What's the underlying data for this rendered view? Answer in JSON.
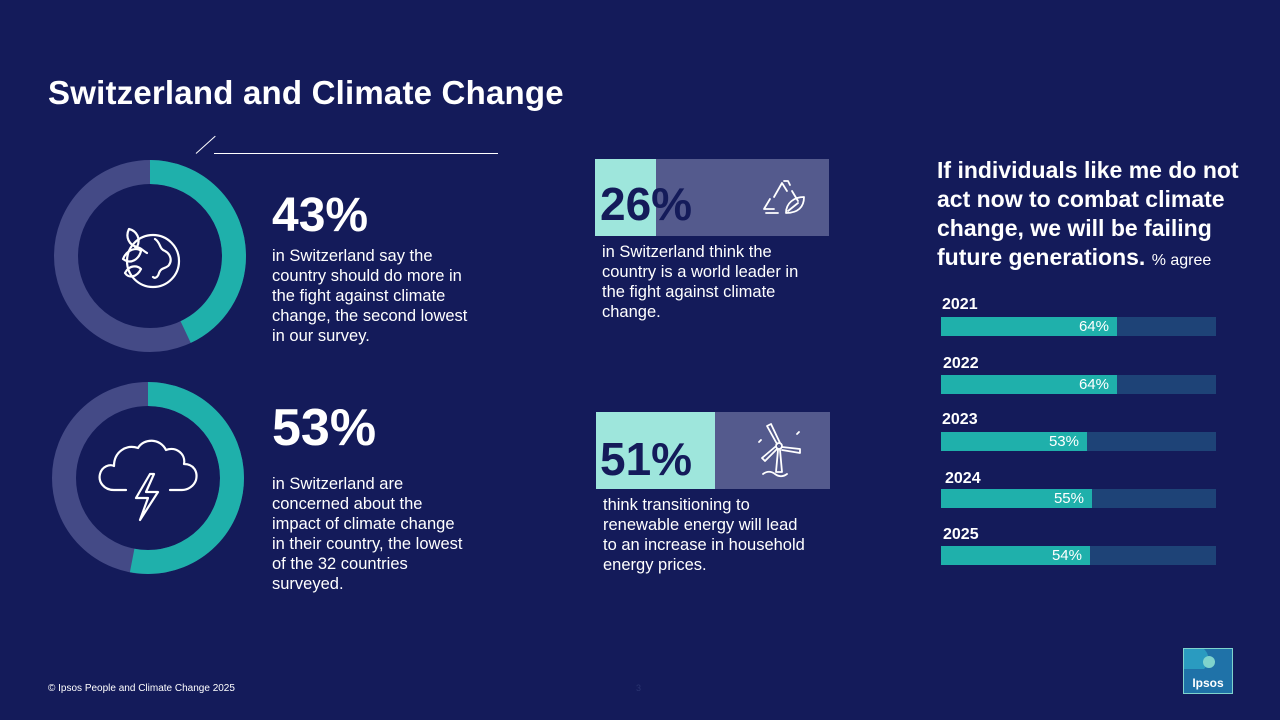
{
  "title": "Switzerland and Climate Change",
  "stats": [
    {
      "value": "43%",
      "text": [
        "in Switzerland say the",
        "country should do more in",
        "the fight against climate",
        "change, the second lowest",
        "in our survey."
      ]
    },
    {
      "value": "53%",
      "text": [
        "in Switzerland are",
        "concerned about the",
        "impact of climate change",
        "in their country, the lowest",
        "of the 32 countries",
        "surveyed."
      ]
    }
  ],
  "pills": [
    {
      "value": "26%",
      "text": [
        "in Switzerland think the",
        "country is a world leader in",
        "the fight against climate",
        "change."
      ],
      "icon": "recycle-leaf-icon"
    },
    {
      "value": "51%",
      "text": [
        "think transitioning to",
        "renewable energy will lead",
        "to an increase in household",
        "energy prices."
      ],
      "icon": "wind-turbine-icon"
    }
  ],
  "chart_data": {
    "type": "bar",
    "title": "If individuals like me do not act now to combat climate change, we will be failing future generations.",
    "subtitle": "% agree",
    "categories": [
      "2021",
      "2022",
      "2023",
      "2024",
      "2025"
    ],
    "values": [
      64,
      64,
      53,
      55,
      54
    ],
    "value_labels": [
      "64%",
      "64%",
      "53%",
      "55%",
      "54%"
    ],
    "ylim": [
      0,
      100
    ],
    "orientation": "horizontal"
  },
  "colors": {
    "background": "#141b5a",
    "accent": "#1fb0ab",
    "track": "#1e4377",
    "pill_light": "#9ee6dc",
    "pill_dark": "#545a8d"
  },
  "footer": {
    "copyright": "© Ipsos People and Climate Change 2025",
    "page": "3"
  },
  "logo": {
    "text": "Ipsos"
  }
}
